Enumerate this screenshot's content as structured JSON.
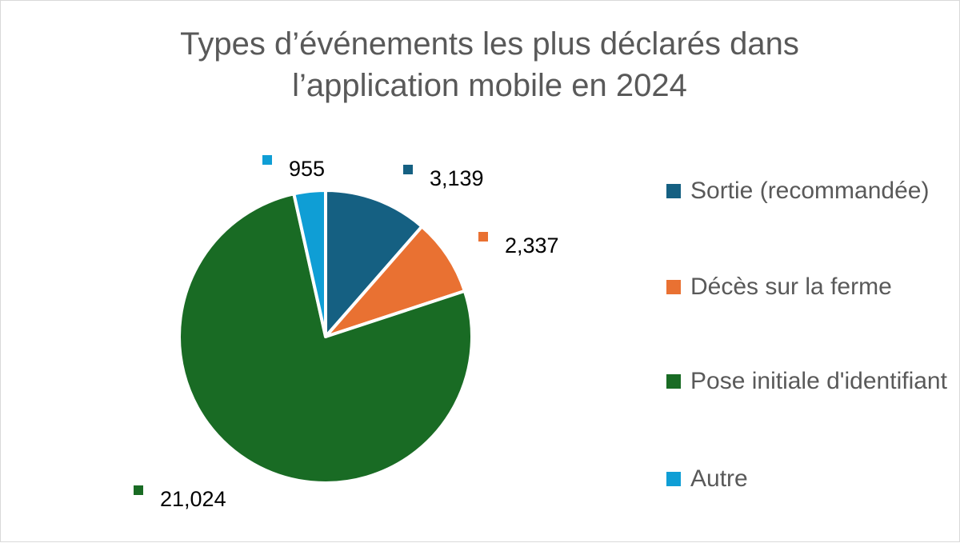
{
  "chart_data": {
    "type": "pie",
    "title_lines": [
      "Types d’événements les plus déclarés dans",
      "l’application mobile en 2024"
    ],
    "categories": [
      "Sortie (recommandée)",
      "Décès sur la ferme",
      "Pose initiale d'identifiant",
      "Autre"
    ],
    "values": [
      3139,
      2337,
      21024,
      955
    ],
    "data_labels": [
      "3,139",
      "2,337",
      "21,024",
      "955"
    ],
    "colors": [
      "#156082",
      "#e97132",
      "#196b24",
      "#0f9ed5"
    ],
    "legend_position": "right"
  }
}
